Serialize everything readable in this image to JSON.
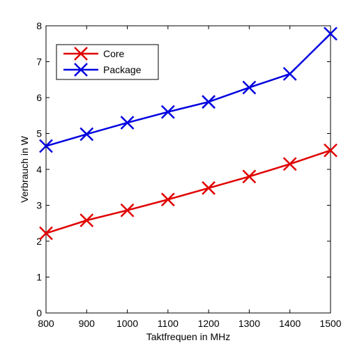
{
  "chart_data": {
    "type": "line",
    "xlabel": "Taktfrequen in MHz",
    "ylabel": "Verbrauch in W",
    "xlim": [
      800,
      1500
    ],
    "ylim": [
      0,
      8
    ],
    "x": [
      800,
      900,
      1000,
      1100,
      1200,
      1300,
      1400,
      1500
    ],
    "x_ticks": [
      "800",
      "900",
      "1000",
      "1100",
      "1200",
      "1300",
      "1400",
      "1500"
    ],
    "y_ticks": [
      "0",
      "1",
      "2",
      "3",
      "4",
      "5",
      "6",
      "7",
      "8"
    ],
    "grid": false,
    "legend_position": "top-left",
    "series": [
      {
        "name": "Core",
        "color": "#e00000",
        "marker": "x",
        "values": [
          2.22,
          2.58,
          2.86,
          3.16,
          3.48,
          3.8,
          4.15,
          4.53
        ]
      },
      {
        "name": "Package",
        "color": "#0000e0",
        "marker": "x",
        "values": [
          4.65,
          4.98,
          5.3,
          5.6,
          5.88,
          6.28,
          6.66,
          7.78
        ]
      }
    ]
  }
}
